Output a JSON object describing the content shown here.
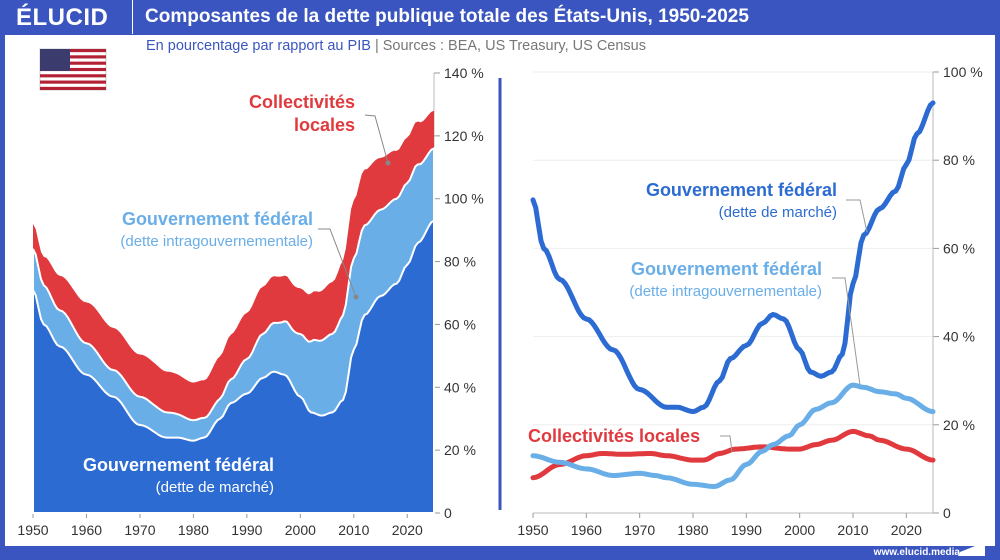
{
  "header": {
    "logo": "ÉLUCID",
    "title": "Composantes de la dette publique totale des États-Unis, 1950-2025"
  },
  "subtitle": {
    "unit": "En pourcentage par rapport au PIB",
    "separator": "|",
    "sources": "Sources : BEA, US Treasury, US Census"
  },
  "footer": {
    "url": "www.elucid.media"
  },
  "colors": {
    "market": "#2b6bd2",
    "intragov": "#6aaee8",
    "local": "#e0393e",
    "frame": "#3a55c0"
  },
  "chart_data": [
    {
      "type": "area",
      "stacked": true,
      "xlim": [
        1950,
        2025
      ],
      "ylim": [
        0,
        140
      ],
      "x_ticks": [
        "1950",
        "1960",
        "1970",
        "1980",
        "1990",
        "2000",
        "2010",
        "2020"
      ],
      "y_ticks": [
        "0",
        "20 %",
        "40 %",
        "60 %",
        "80 %",
        "100 %",
        "120 %",
        "140 %"
      ],
      "annotations": [
        {
          "series": "market",
          "title": "Gouvernement fédéral",
          "subtitle": "(dette de marché)"
        },
        {
          "series": "intragov",
          "title": "Gouvernement fédéral",
          "subtitle": "(dette intragouvernementale)"
        },
        {
          "series": "local",
          "title": "Collectivités",
          "subtitle": "locales"
        }
      ]
    },
    {
      "type": "line",
      "xlim": [
        1950,
        2025
      ],
      "ylim": [
        0,
        100
      ],
      "x_ticks": [
        "1950",
        "1960",
        "1970",
        "1980",
        "1990",
        "2000",
        "2010",
        "2020"
      ],
      "y_ticks": [
        "0",
        "20 %",
        "40 %",
        "60 %",
        "80 %",
        "100 %"
      ],
      "annotations": [
        {
          "series": "market",
          "title": "Gouvernement fédéral",
          "subtitle": "(dette de marché)"
        },
        {
          "series": "intragov",
          "title": "Gouvernement fédéral",
          "subtitle": "(dette intragouvernementale)"
        },
        {
          "series": "local",
          "title": "Collectivités locales"
        }
      ]
    }
  ],
  "series": {
    "market": {
      "x": [
        1950,
        1952,
        1955,
        1960,
        1965,
        1970,
        1975,
        1977,
        1980,
        1982,
        1985,
        1987,
        1990,
        1993,
        1995,
        1997,
        2000,
        2002,
        2004,
        2006,
        2008,
        2010,
        2012,
        2015,
        2018,
        2020,
        2022,
        2025
      ],
      "y": [
        71,
        60,
        53,
        44,
        37,
        28,
        24,
        24,
        23,
        24,
        30,
        35,
        38,
        43,
        45,
        44,
        37,
        32,
        31,
        32,
        36,
        52,
        63,
        69,
        73,
        79,
        86,
        93
      ]
    },
    "intragov": {
      "x": [
        1950,
        1955,
        1960,
        1965,
        1970,
        1973,
        1975,
        1980,
        1984,
        1987,
        1990,
        1993,
        1995,
        1998,
        2000,
        2003,
        2006,
        2010,
        2012,
        2015,
        2018,
        2020,
        2025
      ],
      "y": [
        13,
        11.5,
        10,
        8.5,
        9,
        8.5,
        8,
        6.5,
        6,
        7.5,
        11,
        14,
        15.5,
        17.5,
        20,
        23.5,
        25,
        29,
        28.5,
        27.5,
        27,
        26,
        23
      ]
    },
    "local": {
      "x": [
        1950,
        1955,
        1960,
        1963,
        1967,
        1972,
        1975,
        1980,
        1982,
        1985,
        1988,
        1993,
        1998,
        2000,
        2003,
        2006,
        2010,
        2013,
        2015,
        2020,
        2025
      ],
      "y": [
        8,
        11,
        13,
        13.5,
        13.3,
        13.5,
        13,
        12,
        12,
        13.5,
        14.5,
        15,
        14.5,
        14.5,
        15.5,
        16.5,
        18.5,
        17.5,
        16.5,
        14.5,
        12
      ]
    }
  }
}
